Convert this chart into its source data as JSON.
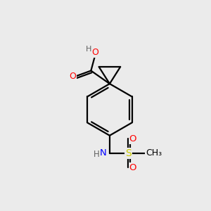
{
  "background_color": "#ebebeb",
  "atom_colors": {
    "C": "#000000",
    "H": "#606060",
    "O": "#ff0000",
    "N": "#0000ff",
    "S": "#cccc00"
  },
  "figsize": [
    3.0,
    3.0
  ],
  "dpi": 100
}
